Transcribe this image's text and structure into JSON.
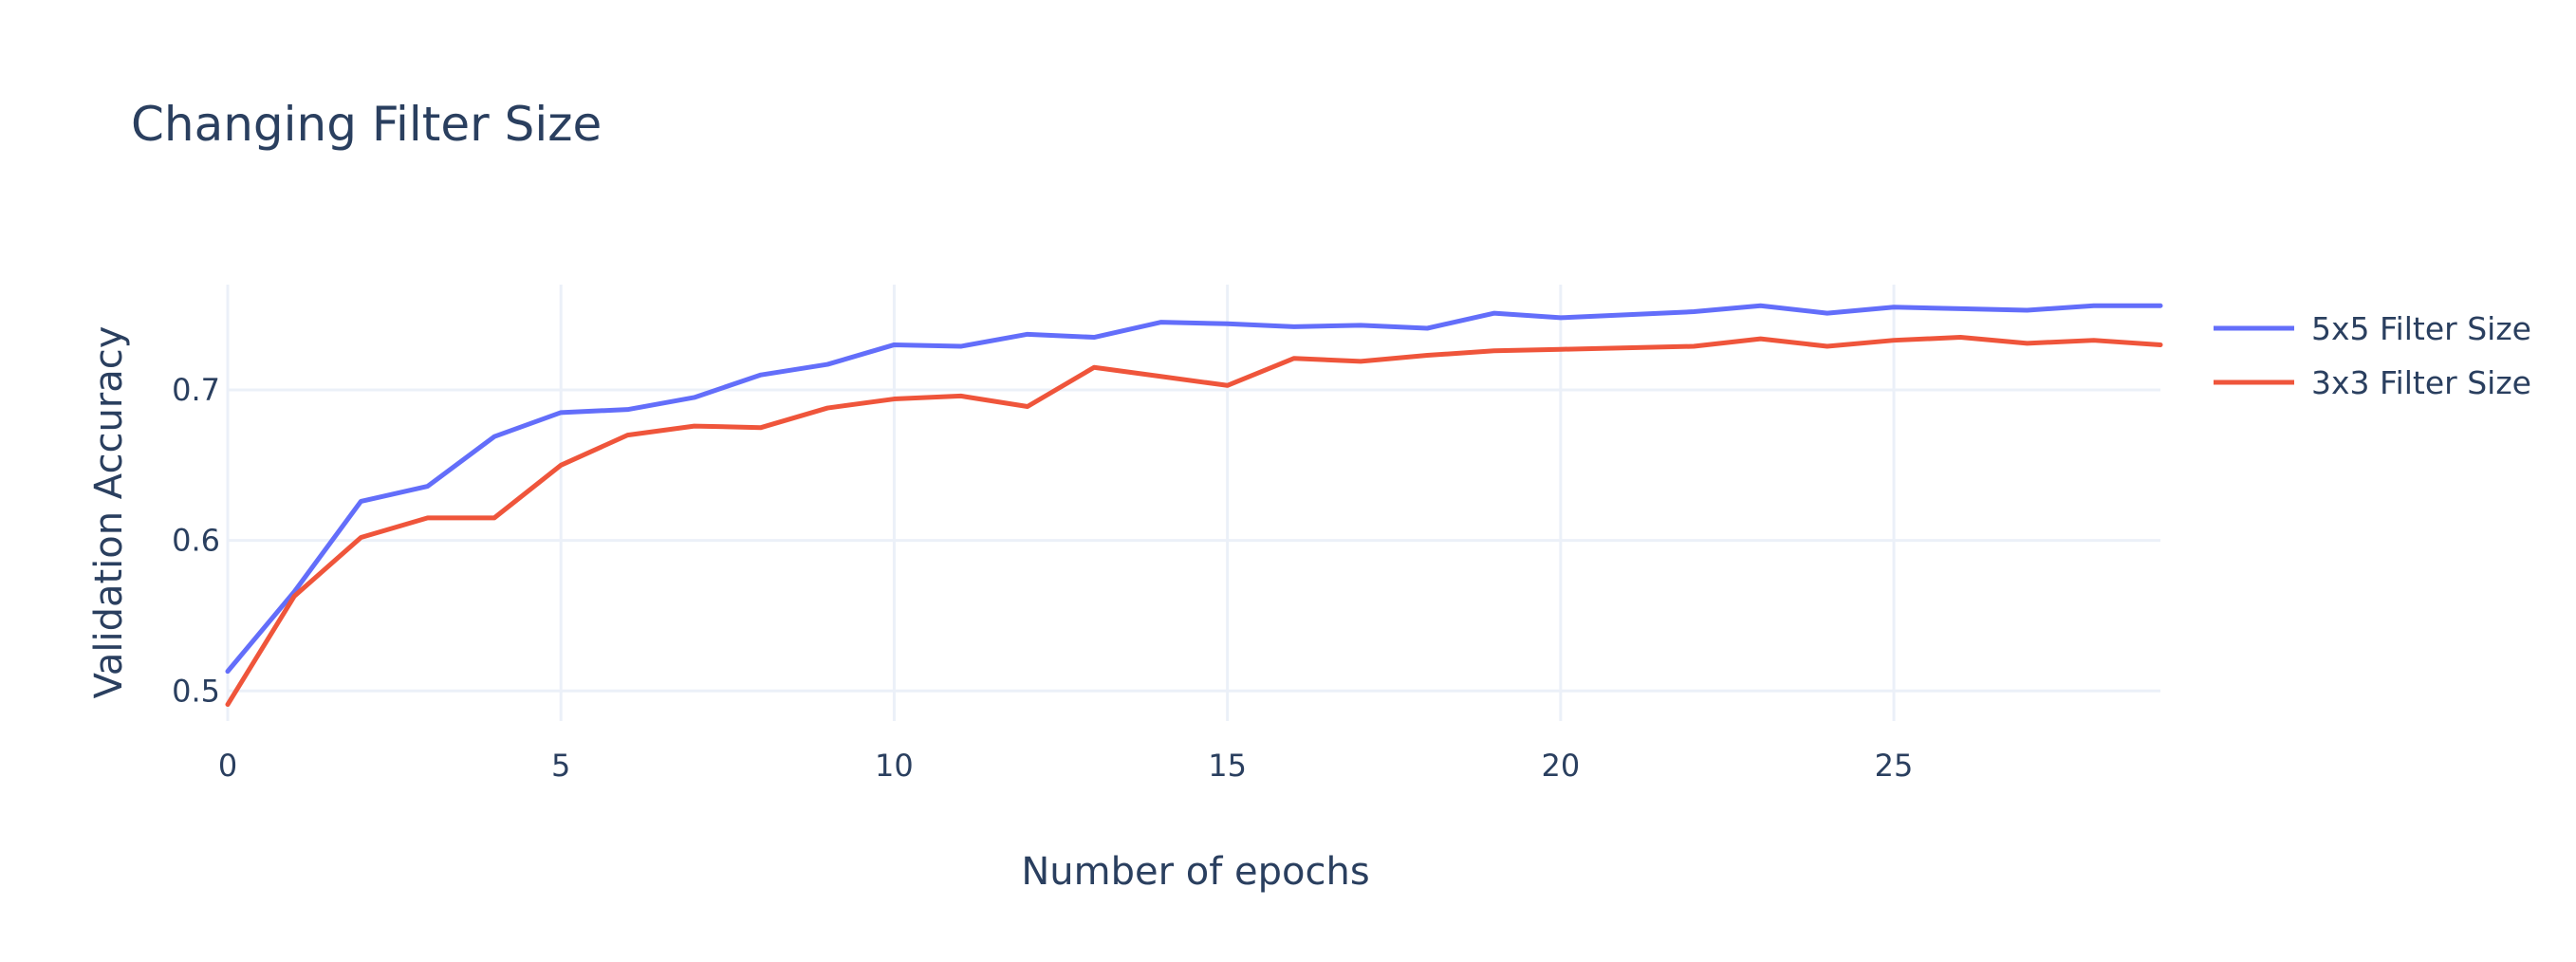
{
  "chart_data": {
    "type": "line",
    "title": "Changing Filter Size",
    "xlabel": "Number of epochs",
    "ylabel": "Validation Accuracy",
    "xlim": [
      0,
      29
    ],
    "ylim": [
      0.48,
      0.77
    ],
    "x_ticks": [
      0,
      5,
      10,
      15,
      20,
      25
    ],
    "y_ticks": [
      0.5,
      0.6,
      0.7
    ],
    "grid": true,
    "legend_position": "top-right",
    "x": [
      0,
      1,
      2,
      3,
      4,
      5,
      6,
      7,
      8,
      9,
      10,
      11,
      12,
      13,
      14,
      15,
      16,
      17,
      18,
      19,
      20,
      21,
      22,
      23,
      24,
      25,
      26,
      27,
      28,
      29
    ],
    "series": [
      {
        "name": "5x5 Filter Size",
        "color": "#636efa",
        "values": [
          0.513,
          0.566,
          0.626,
          0.636,
          0.669,
          0.685,
          0.687,
          0.695,
          0.71,
          0.717,
          0.73,
          0.729,
          0.737,
          0.735,
          0.745,
          0.744,
          0.742,
          0.743,
          0.741,
          0.751,
          0.748,
          0.75,
          0.752,
          0.756,
          0.751,
          0.755,
          0.754,
          0.753,
          0.756,
          0.756
        ]
      },
      {
        "name": "3x3 Filter Size",
        "color": "#ef553b",
        "values": [
          0.491,
          0.563,
          0.602,
          0.615,
          0.615,
          0.65,
          0.67,
          0.676,
          0.675,
          0.688,
          0.694,
          0.696,
          0.689,
          0.715,
          0.709,
          0.703,
          0.721,
          0.719,
          0.723,
          0.726,
          0.727,
          0.728,
          0.729,
          0.734,
          0.729,
          0.733,
          0.735,
          0.731,
          0.733,
          0.73
        ]
      }
    ]
  }
}
